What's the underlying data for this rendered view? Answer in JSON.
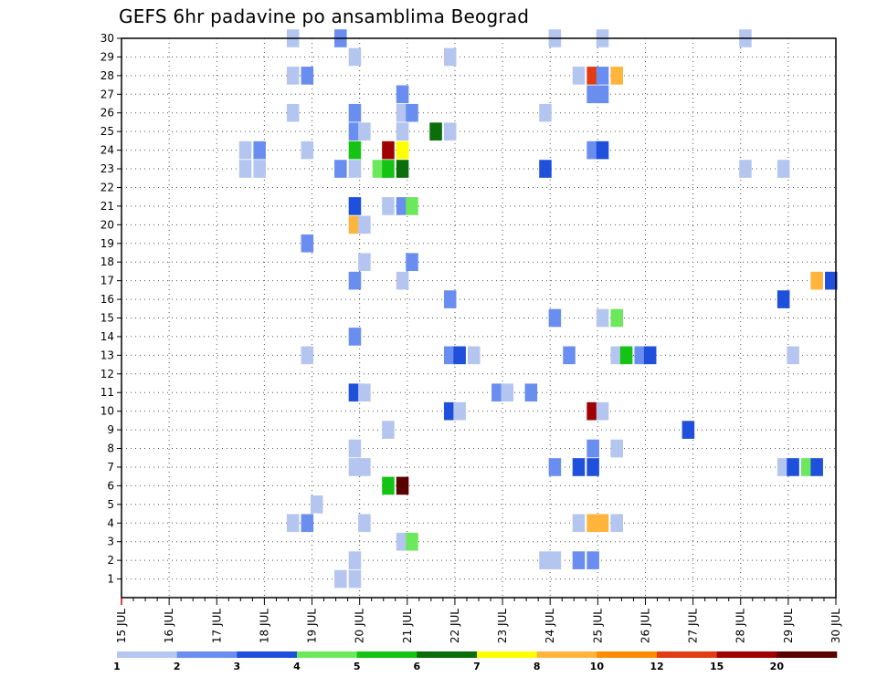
{
  "chart_data": {
    "type": "heatmap",
    "title": "GEFS 6hr padavine po ansamblima Beograd",
    "x_axis": {
      "range_days": [
        15,
        30
      ],
      "tick_labels": [
        "15 JUL",
        "16 JUL",
        "17 JUL",
        "18 JUL",
        "19 JUL",
        "20 JUL",
        "21 JUL",
        "22 JUL",
        "23 JUL",
        "24 JUL",
        "25 JUL",
        "26 JUL",
        "27 JUL",
        "28 JUL",
        "29 JUL",
        "30 JUL"
      ],
      "step_hours": 6
    },
    "y_axis": {
      "range": [
        0,
        30
      ],
      "tick_labels": [
        "1",
        "2",
        "3",
        "4",
        "5",
        "6",
        "7",
        "8",
        "9",
        "10",
        "11",
        "12",
        "13",
        "14",
        "15",
        "16",
        "17",
        "18",
        "19",
        "20",
        "21",
        "22",
        "23",
        "24",
        "25",
        "26",
        "27",
        "28",
        "29",
        "30"
      ]
    },
    "grid": "dotted",
    "legend": {
      "placement": "bottom",
      "labels": [
        "1",
        "2",
        "3",
        "4",
        "5",
        "6",
        "7",
        "8",
        "10",
        "12",
        "15",
        "20"
      ],
      "colors": [
        "#b4c6f0",
        "#6a8ef0",
        "#1e50dc",
        "#6ce85c",
        "#14c314",
        "#0a6e0a",
        "#ffff00",
        "#ffb43c",
        "#ff8c00",
        "#e13c14",
        "#a00000",
        "#5a0000"
      ]
    },
    "cells": [
      [
        18.6,
        30,
        0
      ],
      [
        19.6,
        30,
        1
      ],
      [
        24.1,
        30,
        0
      ],
      [
        25.1,
        30,
        0
      ],
      [
        28.1,
        30,
        0
      ],
      [
        19.9,
        29,
        0
      ],
      [
        21.9,
        29,
        0
      ],
      [
        18.6,
        28,
        0
      ],
      [
        18.9,
        28,
        1
      ],
      [
        24.6,
        28,
        0
      ],
      [
        24.9,
        28,
        9
      ],
      [
        25.1,
        28,
        1
      ],
      [
        25.4,
        28,
        7
      ],
      [
        20.9,
        27,
        1
      ],
      [
        24.9,
        27,
        1
      ],
      [
        25.1,
        27,
        1
      ],
      [
        18.6,
        26,
        0
      ],
      [
        19.9,
        26,
        1
      ],
      [
        20.9,
        26,
        0
      ],
      [
        21.1,
        26,
        1
      ],
      [
        23.9,
        26,
        0
      ],
      [
        19.9,
        25,
        1
      ],
      [
        20.1,
        25,
        0
      ],
      [
        20.9,
        25,
        0
      ],
      [
        21.6,
        25,
        5
      ],
      [
        21.9,
        25,
        0
      ],
      [
        17.6,
        24,
        0
      ],
      [
        17.9,
        24,
        1
      ],
      [
        18.9,
        24,
        0
      ],
      [
        19.9,
        24,
        4
      ],
      [
        20.6,
        24,
        10
      ],
      [
        20.9,
        24,
        6
      ],
      [
        24.9,
        24,
        1
      ],
      [
        25.1,
        24,
        2
      ],
      [
        17.6,
        23,
        0
      ],
      [
        17.9,
        23,
        0
      ],
      [
        19.6,
        23,
        1
      ],
      [
        19.9,
        23,
        0
      ],
      [
        20.4,
        23,
        3
      ],
      [
        20.6,
        23,
        4
      ],
      [
        20.9,
        23,
        5
      ],
      [
        23.9,
        23,
        2
      ],
      [
        28.1,
        23,
        0
      ],
      [
        28.9,
        23,
        0
      ],
      [
        19.9,
        21,
        2
      ],
      [
        20.6,
        21,
        0
      ],
      [
        20.9,
        21,
        1
      ],
      [
        21.1,
        21,
        3
      ],
      [
        19.9,
        20,
        7
      ],
      [
        20.1,
        20,
        0
      ],
      [
        18.9,
        19,
        1
      ],
      [
        20.1,
        18,
        0
      ],
      [
        21.1,
        18,
        1
      ],
      [
        19.9,
        17,
        1
      ],
      [
        20.9,
        17,
        0
      ],
      [
        29.6,
        17,
        7
      ],
      [
        29.9,
        17,
        2
      ],
      [
        21.9,
        16,
        1
      ],
      [
        28.9,
        16,
        2
      ],
      [
        24.1,
        15,
        1
      ],
      [
        25.1,
        15,
        0
      ],
      [
        25.4,
        15,
        3
      ],
      [
        19.9,
        14,
        1
      ],
      [
        18.9,
        13,
        0
      ],
      [
        21.9,
        13,
        1
      ],
      [
        22.1,
        13,
        2
      ],
      [
        22.4,
        13,
        0
      ],
      [
        24.4,
        13,
        1
      ],
      [
        25.4,
        13,
        0
      ],
      [
        25.6,
        13,
        4
      ],
      [
        25.9,
        13,
        1
      ],
      [
        26.1,
        13,
        2
      ],
      [
        29.1,
        13,
        0
      ],
      [
        19.9,
        11,
        2
      ],
      [
        20.1,
        11,
        0
      ],
      [
        22.9,
        11,
        1
      ],
      [
        23.1,
        11,
        0
      ],
      [
        23.6,
        11,
        1
      ],
      [
        21.9,
        10,
        2
      ],
      [
        22.1,
        10,
        0
      ],
      [
        24.9,
        10,
        10
      ],
      [
        25.1,
        10,
        0
      ],
      [
        20.6,
        9,
        0
      ],
      [
        26.9,
        9,
        2
      ],
      [
        19.9,
        8,
        0
      ],
      [
        24.9,
        8,
        1
      ],
      [
        25.4,
        8,
        0
      ],
      [
        19.9,
        7,
        0
      ],
      [
        20.1,
        7,
        0
      ],
      [
        24.1,
        7,
        1
      ],
      [
        24.6,
        7,
        2
      ],
      [
        24.9,
        7,
        2
      ],
      [
        28.9,
        7,
        0
      ],
      [
        29.1,
        7,
        2
      ],
      [
        29.4,
        7,
        3
      ],
      [
        29.6,
        7,
        2
      ],
      [
        20.6,
        6,
        4
      ],
      [
        20.9,
        6,
        11
      ],
      [
        19.1,
        5,
        0
      ],
      [
        18.6,
        4,
        0
      ],
      [
        18.9,
        4,
        1
      ],
      [
        20.1,
        4,
        0
      ],
      [
        24.6,
        4,
        0
      ],
      [
        24.9,
        4,
        7
      ],
      [
        25.1,
        4,
        7
      ],
      [
        25.4,
        4,
        0
      ],
      [
        20.9,
        3,
        0
      ],
      [
        21.1,
        3,
        3
      ],
      [
        19.9,
        2,
        0
      ],
      [
        23.9,
        2,
        0
      ],
      [
        24.1,
        2,
        0
      ],
      [
        24.6,
        2,
        1
      ],
      [
        24.9,
        2,
        1
      ],
      [
        19.6,
        1,
        0
      ],
      [
        19.9,
        1,
        0
      ]
    ]
  }
}
